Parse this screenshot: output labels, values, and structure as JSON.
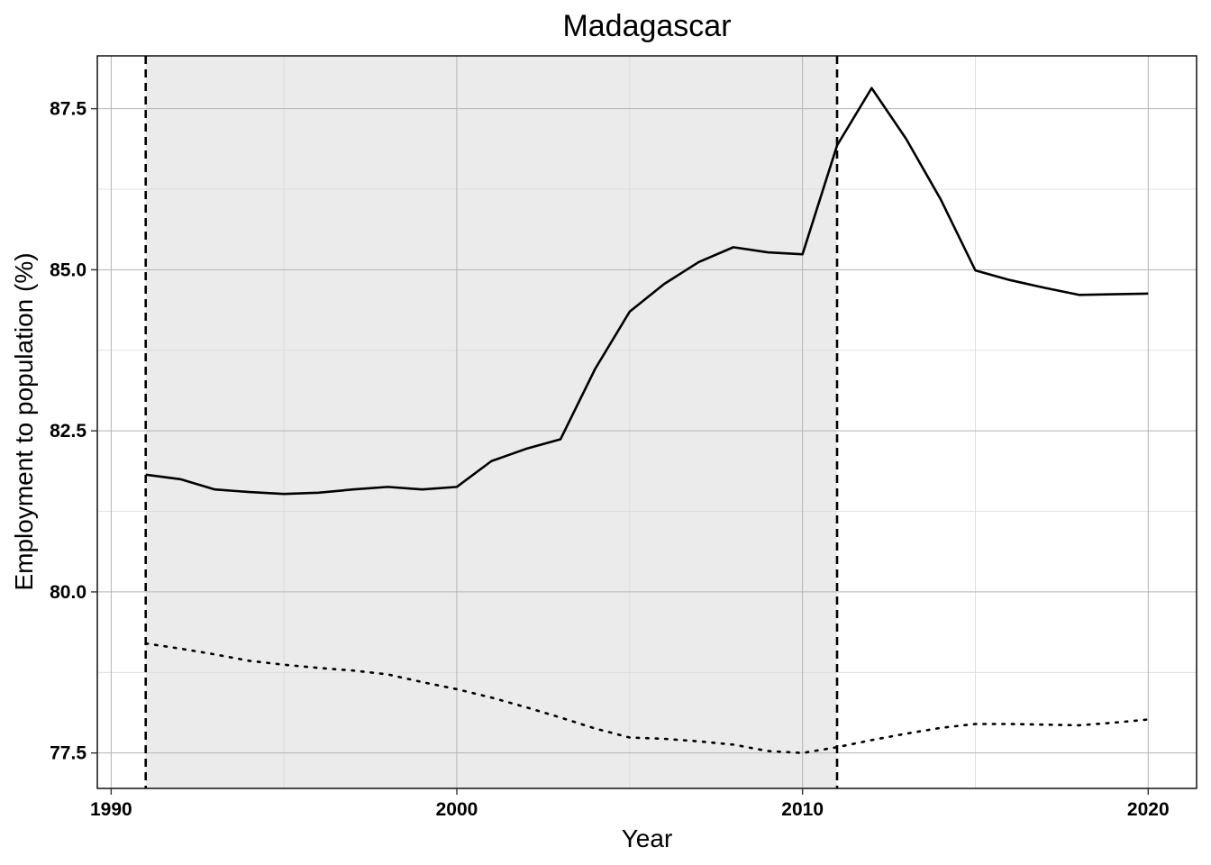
{
  "chart_data": {
    "type": "line",
    "title": "Madagascar",
    "xlabel": "Year",
    "ylabel": "Employment to population (%)",
    "xlim": [
      1989.6,
      2021.4
    ],
    "ylim": [
      76.95,
      88.32
    ],
    "x_ticks": [
      1990,
      2000,
      2010,
      2020
    ],
    "x_tick_labels": [
      "1990",
      "2000",
      "2010",
      "2020"
    ],
    "y_ticks": [
      77.5,
      80.0,
      82.5,
      85.0,
      87.5
    ],
    "y_tick_labels": [
      "77.5",
      "80.0",
      "82.5",
      "85.0",
      "87.5"
    ],
    "grid": true,
    "shaded_region": {
      "x_start": 1991,
      "x_end": 2011,
      "color": "#ebebeb"
    },
    "vertical_lines": [
      {
        "x": 1991,
        "style": "dashed"
      },
      {
        "x": 2011,
        "style": "dashed"
      }
    ],
    "x": [
      1991,
      1992,
      1993,
      1994,
      1995,
      1996,
      1997,
      1998,
      1999,
      2000,
      2001,
      2002,
      2003,
      2004,
      2005,
      2006,
      2007,
      2008,
      2009,
      2010,
      2011,
      2012,
      2013,
      2014,
      2015,
      2016,
      2017,
      2018,
      2019,
      2020
    ],
    "series": [
      {
        "style": "solid",
        "color": "#000000",
        "values": [
          81.82,
          81.75,
          81.59,
          81.55,
          81.52,
          81.54,
          81.59,
          81.63,
          81.59,
          81.63,
          82.03,
          82.22,
          82.37,
          83.46,
          84.35,
          84.78,
          85.12,
          85.35,
          85.27,
          85.24,
          86.93,
          87.82,
          87.03,
          86.09,
          84.99,
          84.84,
          84.72,
          84.61,
          84.62,
          84.63
        ]
      },
      {
        "style": "dotted",
        "color": "#000000",
        "values": [
          79.2,
          79.12,
          79.03,
          78.93,
          78.87,
          78.82,
          78.78,
          78.72,
          78.6,
          78.49,
          78.36,
          78.21,
          78.05,
          77.88,
          77.74,
          77.72,
          77.68,
          77.63,
          77.53,
          77.5,
          77.59,
          77.7,
          77.8,
          77.89,
          77.95,
          77.95,
          77.94,
          77.93,
          77.97,
          78.02
        ]
      }
    ]
  }
}
